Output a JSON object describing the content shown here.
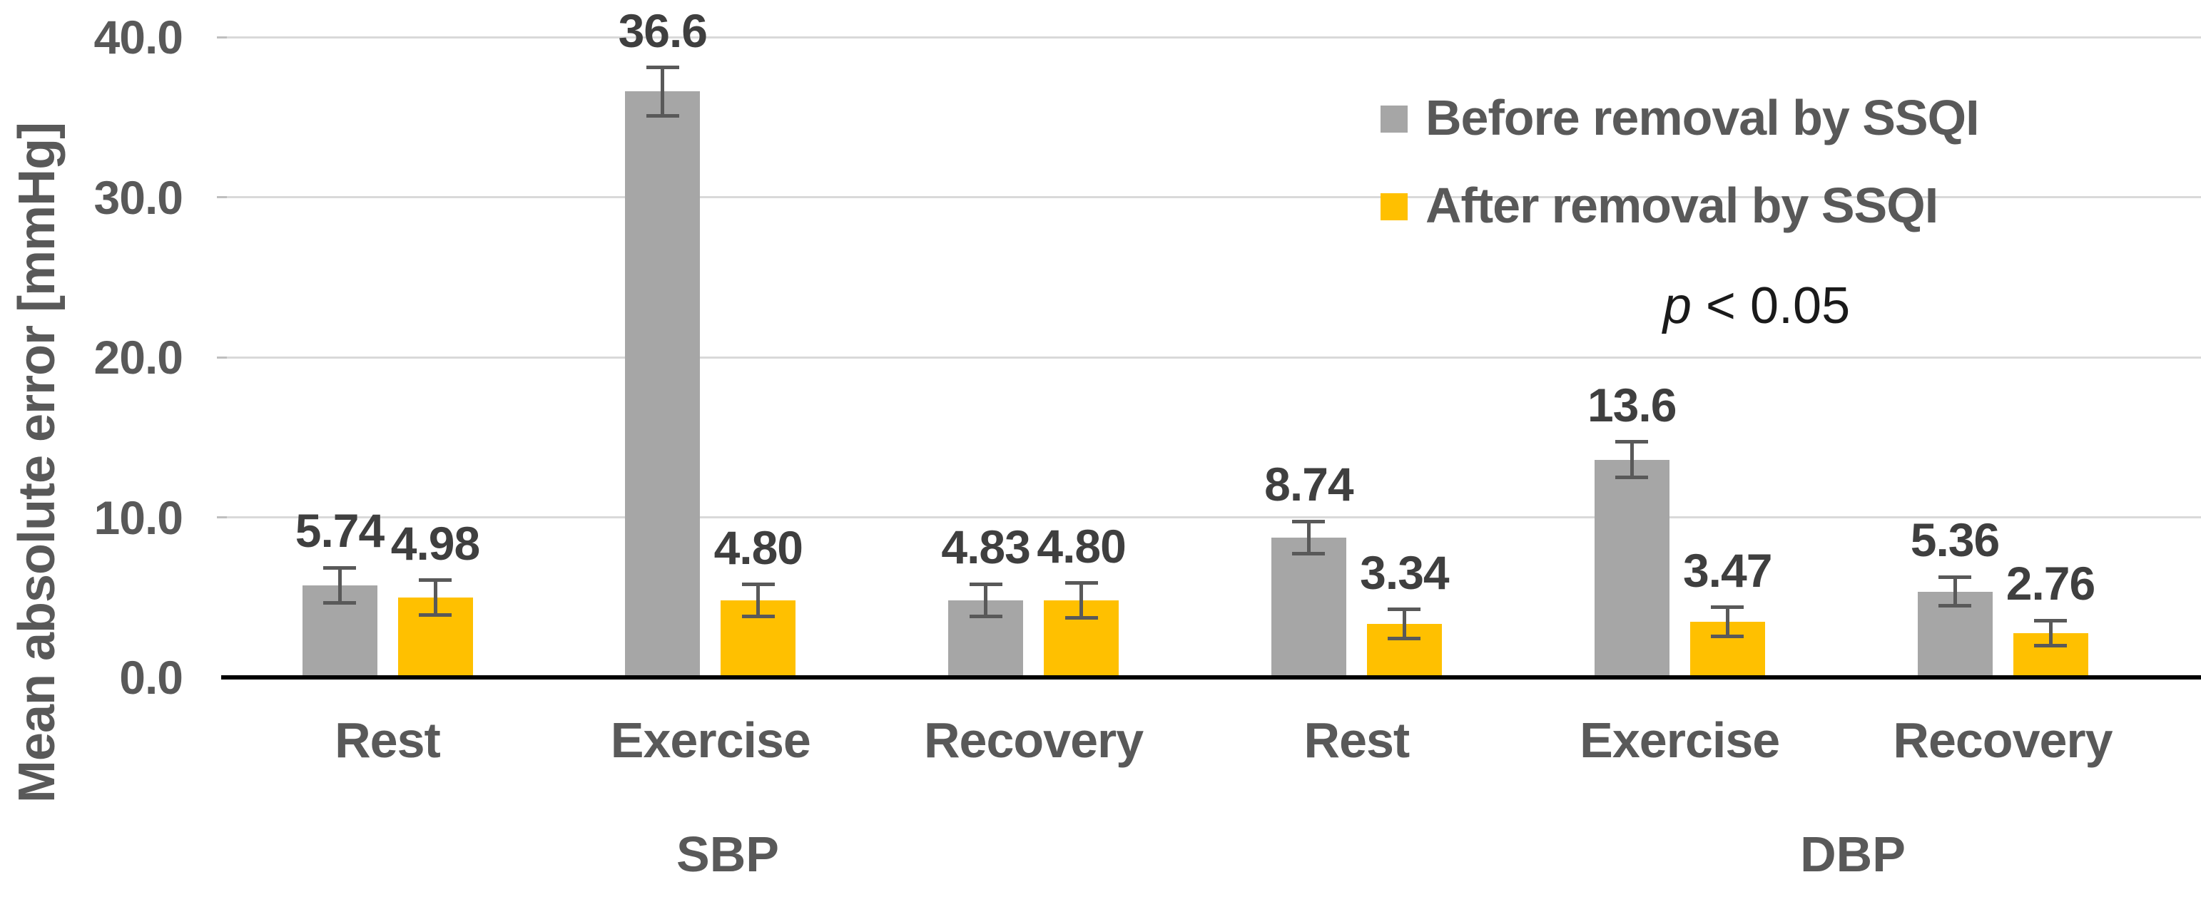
{
  "chart_data": {
    "type": "bar",
    "title": "",
    "ylabel": "Mean absolute error [mmHg]",
    "xlabel": "",
    "ylim": [
      0,
      40
    ],
    "ytick_step": 10,
    "ytick_labels": [
      "0.0",
      "10.0",
      "20.0",
      "30.0",
      "40.0"
    ],
    "grid": true,
    "legend_position": "top-right",
    "group_labels": [
      "SBP",
      "DBP"
    ],
    "categories": [
      "Rest",
      "Exercise",
      "Recovery",
      "Rest",
      "Exercise",
      "Recovery"
    ],
    "series": [
      {
        "name": "Before removal by SSQI",
        "color": "#A6A6A6",
        "values": [
          5.74,
          36.6,
          4.83,
          8.74,
          13.6,
          5.36
        ],
        "labels": [
          "5.74",
          "36.6",
          "4.83",
          "8.74",
          "13.6",
          "5.36"
        ],
        "errors": [
          1.1,
          1.5,
          1.0,
          1.0,
          1.1,
          0.9
        ]
      },
      {
        "name": "After removal by SSQI",
        "color": "#FFC000",
        "values": [
          4.98,
          4.8,
          4.8,
          3.34,
          3.47,
          2.76
        ],
        "labels": [
          "4.98",
          "4.80",
          "4.80",
          "3.34",
          "3.47",
          "2.76"
        ],
        "errors": [
          1.1,
          1.0,
          1.1,
          0.9,
          0.9,
          0.8
        ]
      }
    ],
    "annotation": "p < 0.05",
    "annotation_p": "p",
    "annotation_rest": " < 0.05"
  },
  "colors": {
    "background": "#FFFFFF",
    "gridline": "#D9D9D9",
    "tick_stub": "#BFBFBF",
    "axis_line": "#000000",
    "error_bar": "#595959",
    "value_label_text": "#3F3F3F",
    "axis_text": "#595959",
    "annotation_text": "#1A1A1A"
  }
}
